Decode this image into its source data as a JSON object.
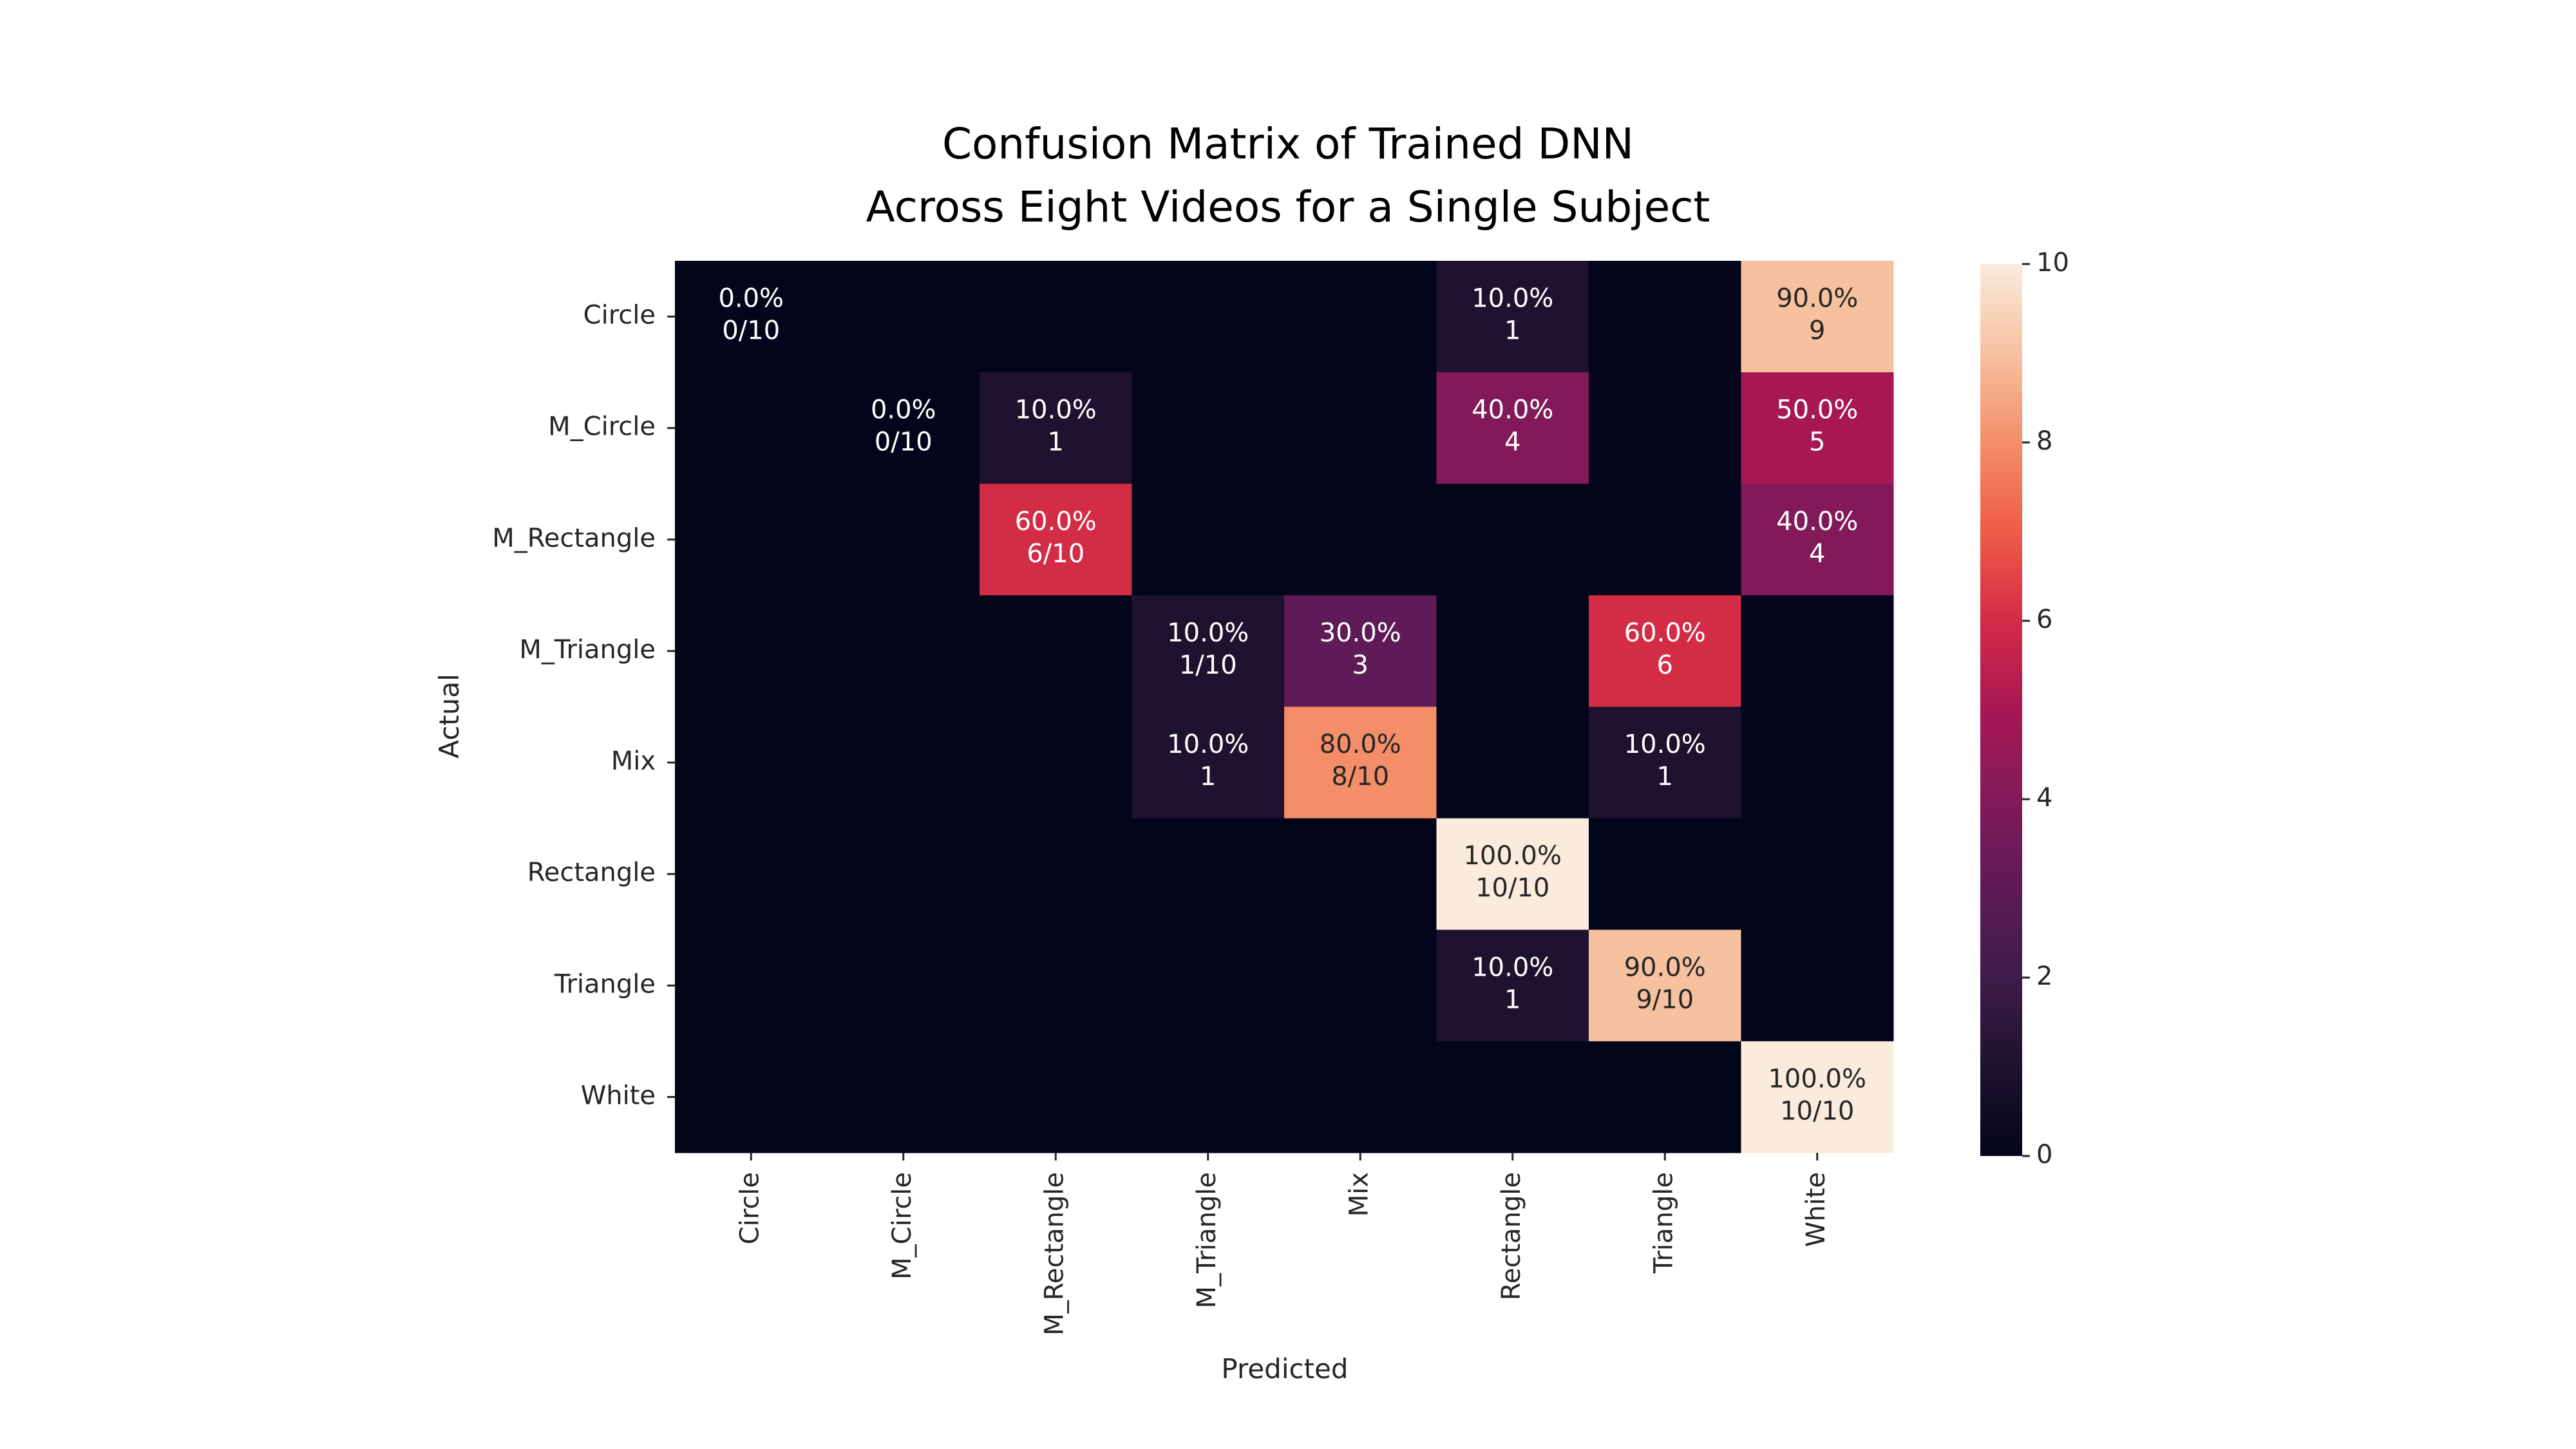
{
  "chart_data": {
    "type": "heatmap",
    "title_lines": [
      "Confusion Matrix of Trained DNN",
      "Across Eight Videos for a Single Subject"
    ],
    "xlabel": "Predicted",
    "ylabel": "Actual",
    "row_labels": [
      "Circle",
      "M_Circle",
      "M_Rectangle",
      "M_Triangle",
      "Mix",
      "Rectangle",
      "Triangle",
      "White"
    ],
    "col_labels": [
      "Circle",
      "M_Circle",
      "M_Rectangle",
      "M_Triangle",
      "Mix",
      "Rectangle",
      "Triangle",
      "White"
    ],
    "values": [
      [
        0,
        0,
        0,
        0,
        0,
        1,
        0,
        9
      ],
      [
        0,
        0,
        1,
        0,
        0,
        4,
        0,
        5
      ],
      [
        0,
        0,
        6,
        0,
        0,
        0,
        0,
        4
      ],
      [
        0,
        0,
        0,
        1,
        3,
        0,
        6,
        0
      ],
      [
        0,
        0,
        0,
        1,
        8,
        0,
        1,
        0
      ],
      [
        0,
        0,
        0,
        0,
        0,
        10,
        0,
        0
      ],
      [
        0,
        0,
        0,
        0,
        0,
        1,
        9,
        0
      ],
      [
        0,
        0,
        0,
        0,
        0,
        0,
        0,
        10
      ]
    ],
    "annotations": [
      {
        "row": 0,
        "col": 0,
        "lines": [
          "0.0%",
          "0/10"
        ]
      },
      {
        "row": 0,
        "col": 5,
        "lines": [
          "10.0%",
          "1"
        ]
      },
      {
        "row": 0,
        "col": 7,
        "lines": [
          "90.0%",
          "9"
        ]
      },
      {
        "row": 1,
        "col": 1,
        "lines": [
          "0.0%",
          "0/10"
        ]
      },
      {
        "row": 1,
        "col": 2,
        "lines": [
          "10.0%",
          "1"
        ]
      },
      {
        "row": 1,
        "col": 5,
        "lines": [
          "40.0%",
          "4"
        ]
      },
      {
        "row": 1,
        "col": 7,
        "lines": [
          "50.0%",
          "5"
        ]
      },
      {
        "row": 2,
        "col": 2,
        "lines": [
          "60.0%",
          "6/10"
        ]
      },
      {
        "row": 2,
        "col": 7,
        "lines": [
          "40.0%",
          "4"
        ]
      },
      {
        "row": 3,
        "col": 3,
        "lines": [
          "10.0%",
          "1/10"
        ]
      },
      {
        "row": 3,
        "col": 4,
        "lines": [
          "30.0%",
          "3"
        ]
      },
      {
        "row": 3,
        "col": 6,
        "lines": [
          "60.0%",
          "6"
        ]
      },
      {
        "row": 4,
        "col": 3,
        "lines": [
          "10.0%",
          "1"
        ]
      },
      {
        "row": 4,
        "col": 4,
        "lines": [
          "80.0%",
          "8/10"
        ]
      },
      {
        "row": 4,
        "col": 6,
        "lines": [
          "10.0%",
          "1"
        ]
      },
      {
        "row": 5,
        "col": 5,
        "lines": [
          "100.0%",
          "10/10"
        ]
      },
      {
        "row": 6,
        "col": 5,
        "lines": [
          "10.0%",
          "1"
        ]
      },
      {
        "row": 6,
        "col": 6,
        "lines": [
          "90.0%",
          "9/10"
        ]
      },
      {
        "row": 7,
        "col": 7,
        "lines": [
          "100.0%",
          "10/10"
        ]
      }
    ],
    "colorbar": {
      "min": 0,
      "max": 10,
      "ticks": [
        "0",
        "2",
        "4",
        "6",
        "8",
        "10"
      ],
      "colormap": "rocket"
    },
    "grid": false,
    "legend": "colorbar-right"
  }
}
